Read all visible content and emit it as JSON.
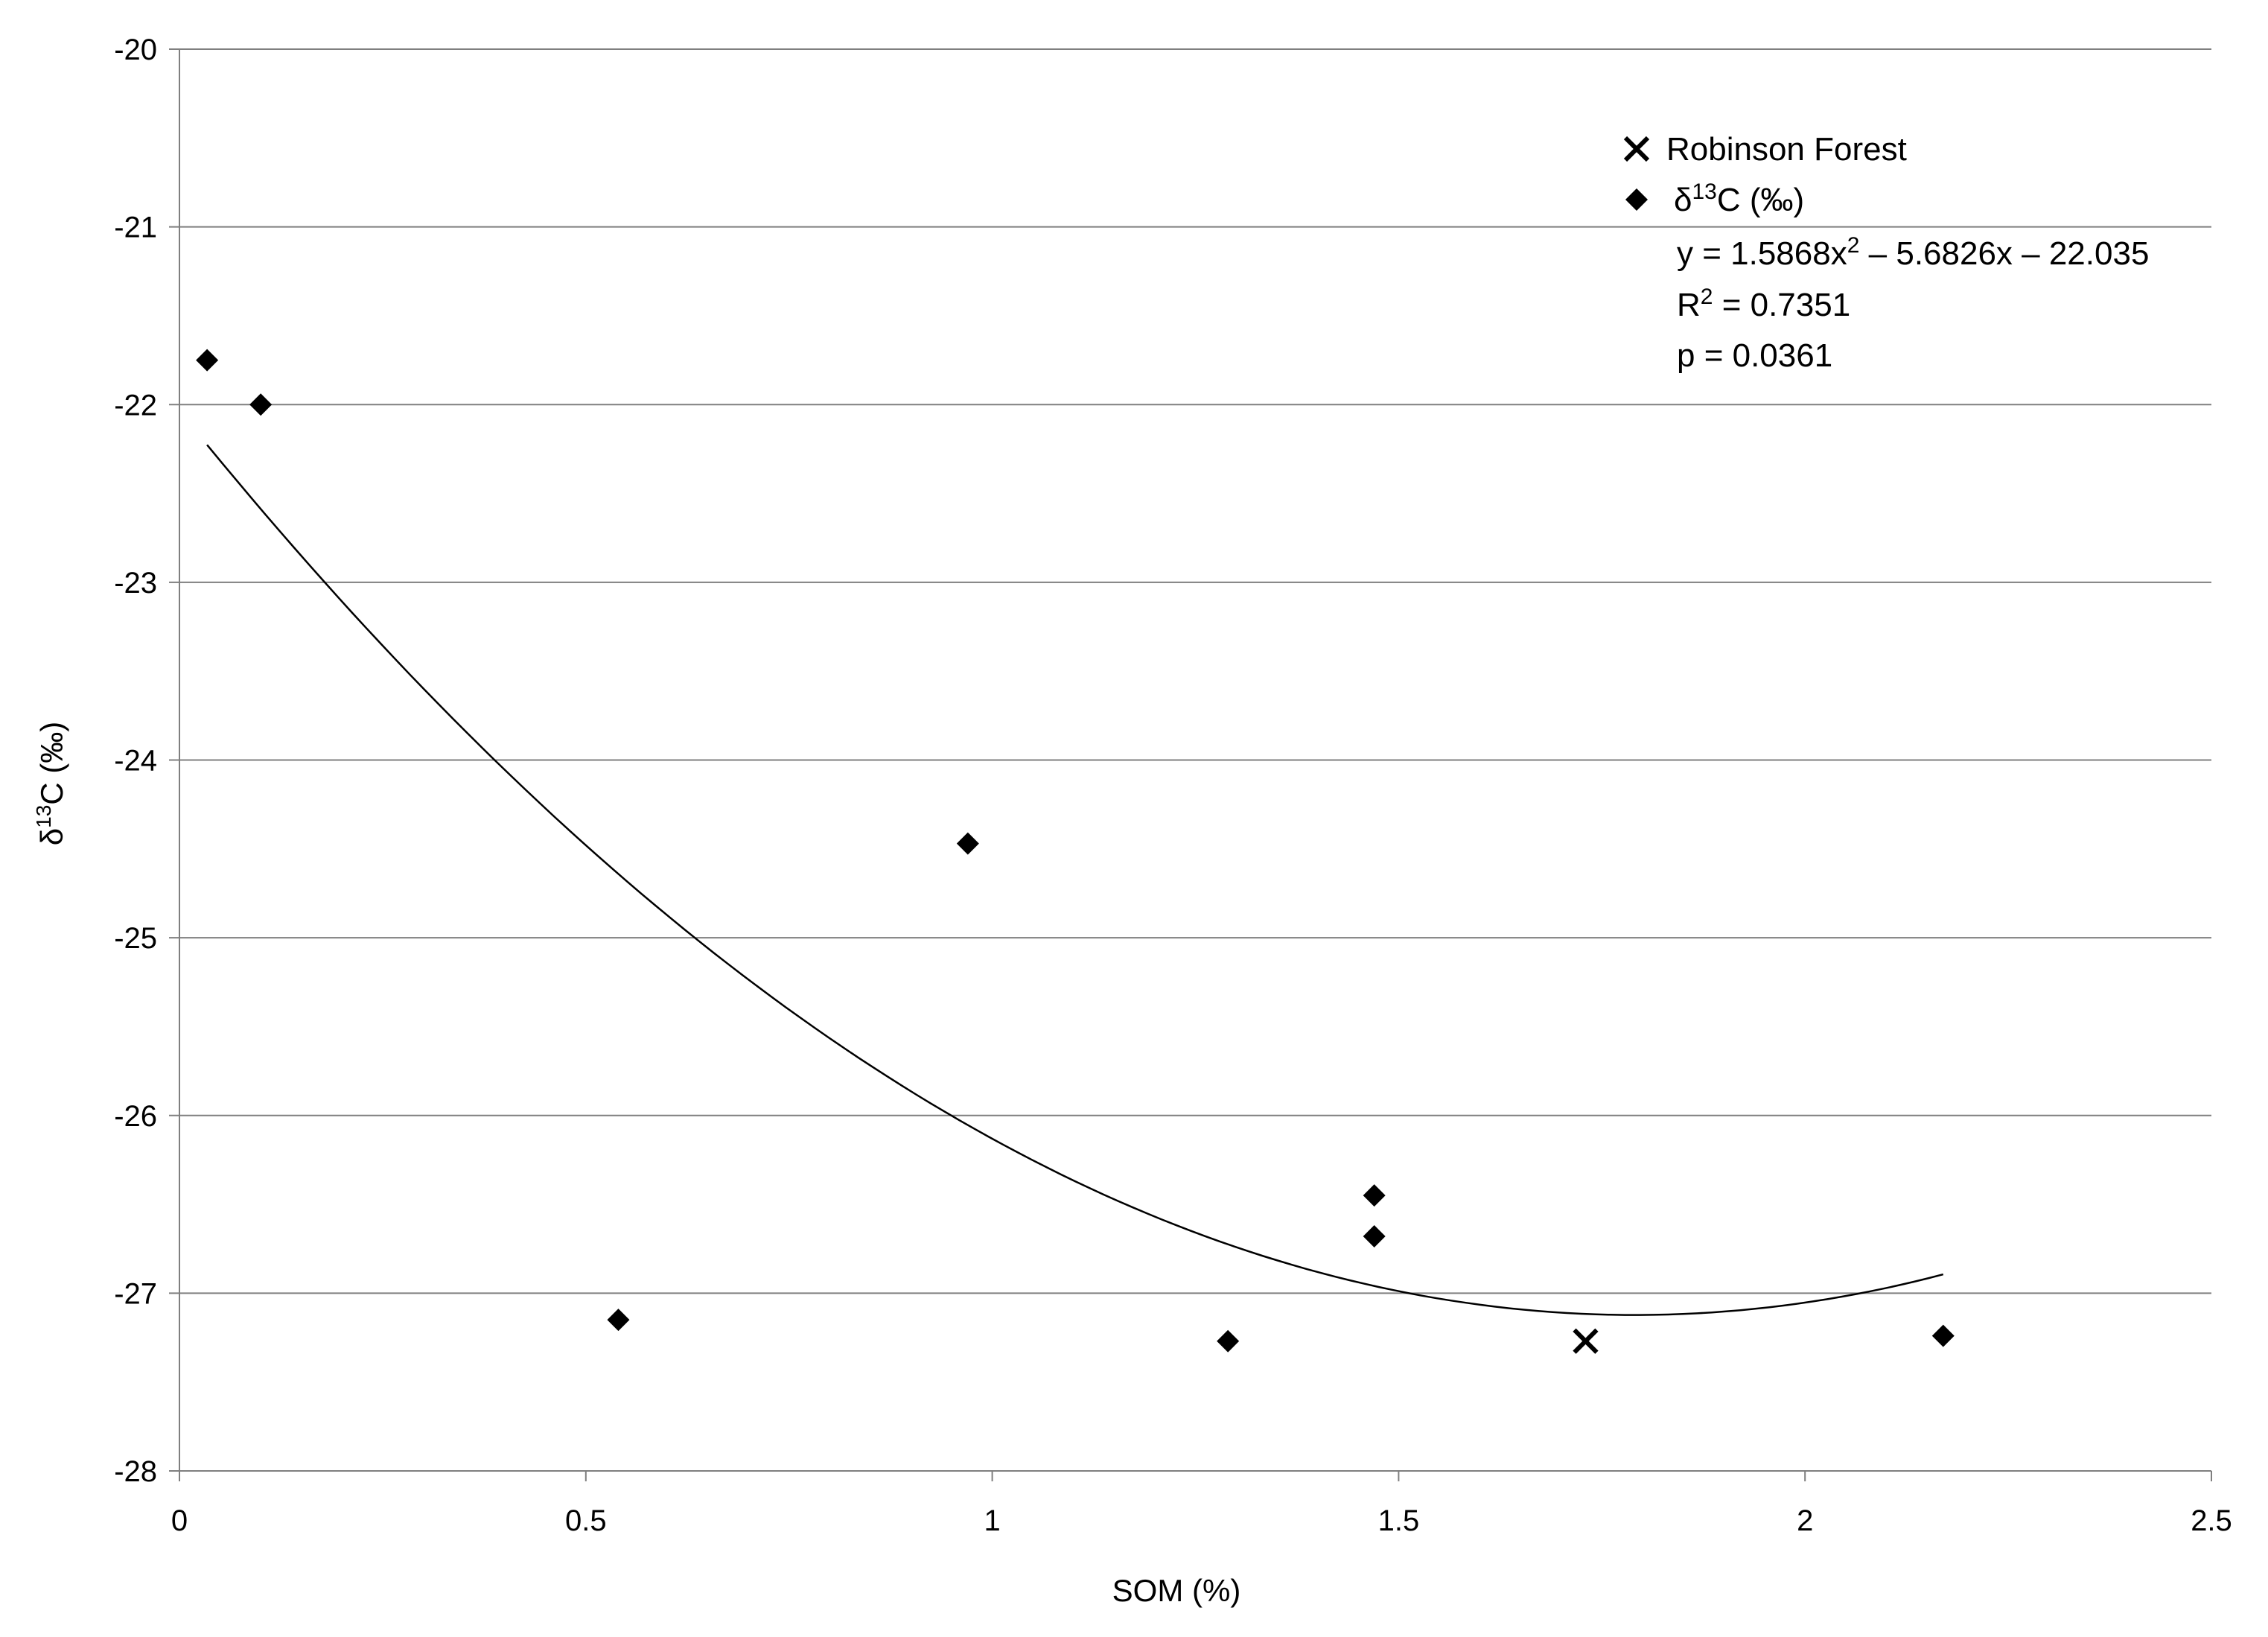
{
  "chart_data": {
    "type": "scatter",
    "title": "",
    "xlabel": "SOM  (%)",
    "ylabel": {
      "base": "δ",
      "sup": "13",
      "rest": "C  (‰)"
    },
    "xlim": [
      0,
      2.5
    ],
    "ylim": [
      -28,
      -20
    ],
    "x_ticks": [
      {
        "value": 0,
        "label": "0"
      },
      {
        "value": 0.5,
        "label": "0.5"
      },
      {
        "value": 1,
        "label": "1"
      },
      {
        "value": 1.5,
        "label": "1.5"
      },
      {
        "value": 2,
        "label": "2"
      },
      {
        "value": 2.5,
        "label": "2.5"
      }
    ],
    "y_ticks": [
      {
        "value": -20,
        "label": "-20"
      },
      {
        "value": -21,
        "label": "-21"
      },
      {
        "value": -22,
        "label": "-22"
      },
      {
        "value": -23,
        "label": "-23"
      },
      {
        "value": -24,
        "label": "-24"
      },
      {
        "value": -25,
        "label": "-25"
      },
      {
        "value": -26,
        "label": "-26"
      },
      {
        "value": -27,
        "label": "-27"
      },
      {
        "value": -28,
        "label": "-28"
      }
    ],
    "grid": "horizontal",
    "legend_position": "top-right",
    "series": [
      {
        "name": "Robinson Forest",
        "marker": "x",
        "color": "#000000",
        "points": [
          {
            "x": 1.73,
            "y": -27.27
          }
        ]
      },
      {
        "name": {
          "base": "δ",
          "sup": "13",
          "rest": "C (‰)"
        },
        "marker": "diamond",
        "color": "#000000",
        "points": [
          {
            "x": 0.034,
            "y": -21.75
          },
          {
            "x": 0.1,
            "y": -22.0
          },
          {
            "x": 0.54,
            "y": -27.15
          },
          {
            "x": 0.97,
            "y": -24.47
          },
          {
            "x": 1.29,
            "y": -27.27
          },
          {
            "x": 1.47,
            "y": -26.45
          },
          {
            "x": 1.47,
            "y": -26.68
          },
          {
            "x": 2.17,
            "y": -27.24
          }
        ]
      }
    ],
    "trendline": {
      "type": "polynomial",
      "a": 1.5868,
      "b": -5.6826,
      "c": -22.035,
      "x_range": [
        0.034,
        2.17
      ],
      "color": "#000000"
    },
    "annotations": {
      "equation": {
        "pre": "y = 1.5868x",
        "sup": "2",
        "post": " – 5.6826x – 22.035"
      },
      "r2": {
        "pre": "R",
        "sup": "2",
        "post": " = 0.7351"
      },
      "p": "p = 0.0361"
    }
  }
}
